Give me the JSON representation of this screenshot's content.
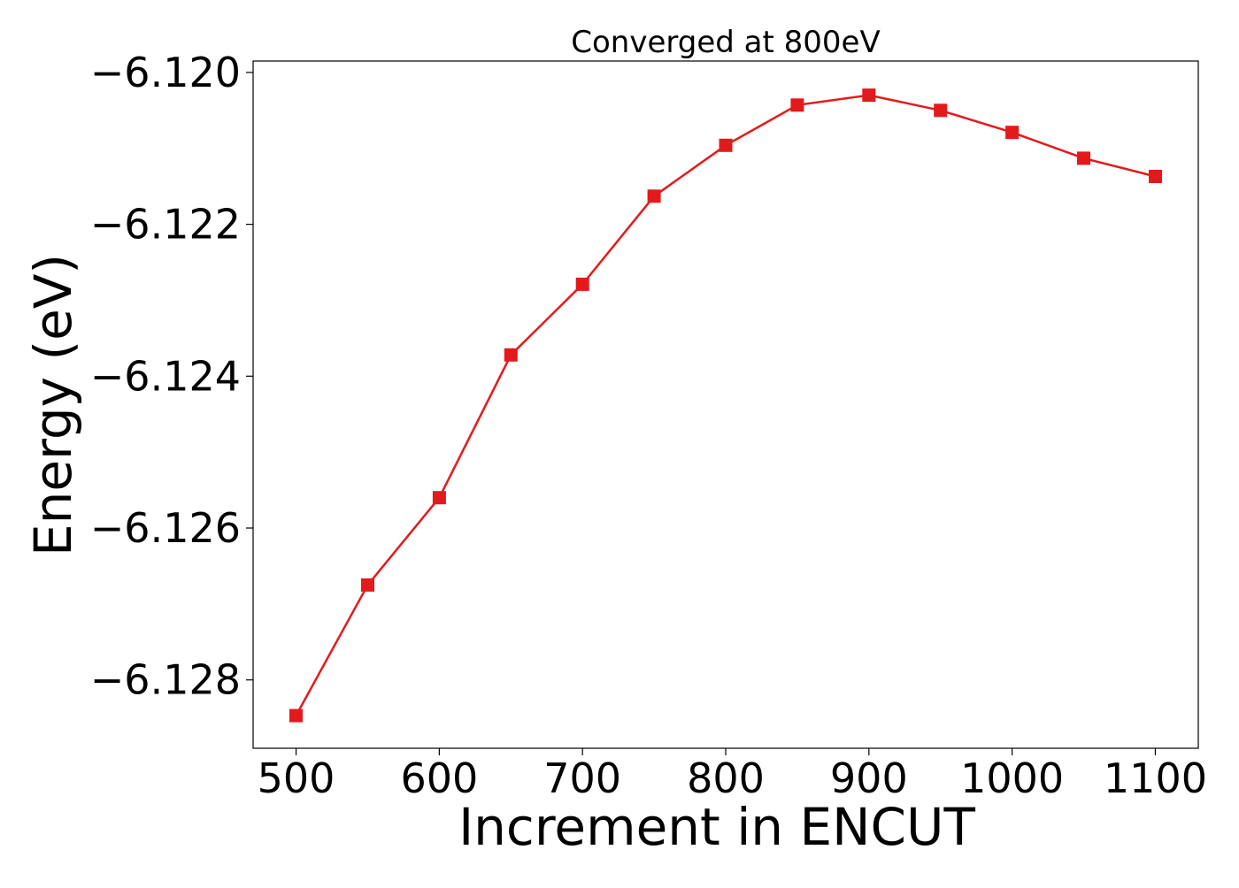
{
  "chart_data": {
    "type": "line",
    "title": "Converged at 800eV",
    "xlabel": "Increment in ENCUT",
    "ylabel": "Energy (eV)",
    "x": [
      500,
      550,
      600,
      650,
      700,
      750,
      800,
      850,
      900,
      950,
      1000,
      1050,
      1100
    ],
    "series": [
      {
        "values": [
          -6.12847,
          -6.12675,
          -6.1256,
          -6.12372,
          -6.12279,
          -6.12163,
          -6.12096,
          -6.12043,
          -6.1203,
          -6.1205,
          -6.12079,
          -6.12113,
          -6.12137
        ],
        "color": "#e31a1c",
        "marker": "square"
      }
    ],
    "xlim": [
      470,
      1130
    ],
    "ylim": [
      -6.1289,
      -6.11985
    ],
    "xticks": [
      500,
      600,
      700,
      800,
      900,
      1000,
      1100
    ],
    "xtick_labels": [
      "500",
      "600",
      "700",
      "800",
      "900",
      "1000",
      "1100"
    ],
    "yticks": [
      -6.128,
      -6.126,
      -6.124,
      -6.122,
      -6.12
    ],
    "ytick_labels": [
      "−6.128",
      "−6.126",
      "−6.124",
      "−6.122",
      "−6.120"
    ],
    "grid": false,
    "legend": "none"
  }
}
